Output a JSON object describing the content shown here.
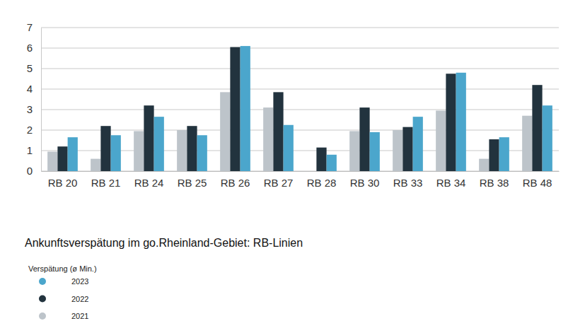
{
  "chart_data": {
    "type": "bar",
    "title": "Ankunftsverspätung im go.Rheinland-Gebiet: RB-Linien",
    "legend_title": "Verspätung (ø Min.)",
    "categories": [
      "RB 20",
      "RB 21",
      "RB 24",
      "RB 25",
      "RB 26",
      "RB 27",
      "RB 28",
      "RB 30",
      "RB 33",
      "RB 34",
      "RB 38",
      "RB 48"
    ],
    "series": [
      {
        "name": "2021",
        "color": "#bdc4ca",
        "values": [
          0.95,
          0.6,
          1.95,
          2.0,
          3.85,
          3.1,
          null,
          1.95,
          2.0,
          2.95,
          0.6,
          2.7
        ]
      },
      {
        "name": "2022",
        "color": "#22333e",
        "values": [
          1.2,
          2.2,
          3.2,
          2.2,
          6.05,
          3.85,
          1.15,
          3.1,
          2.15,
          4.75,
          1.55,
          4.2
        ]
      },
      {
        "name": "2023",
        "color": "#4ba6cc",
        "values": [
          1.65,
          1.75,
          2.65,
          1.75,
          6.1,
          2.25,
          0.8,
          1.9,
          2.65,
          4.8,
          1.65,
          3.2
        ]
      }
    ],
    "ylim": [
      0,
      7
    ],
    "yticks": [
      0,
      1,
      2,
      3,
      4,
      5,
      6,
      7
    ],
    "grid": true,
    "legend": "bottom-left"
  }
}
